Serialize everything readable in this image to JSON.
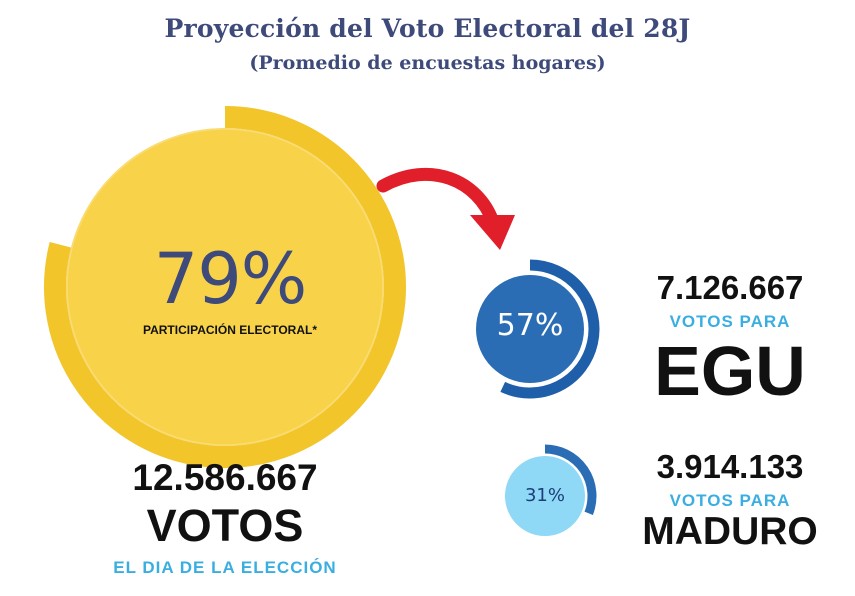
{
  "header": {
    "title": "Proyección del Voto Electoral del 28J",
    "subtitle": "(Promedio de encuestas hogares)"
  },
  "participation": {
    "percent_text": "79%",
    "percent_value": 79,
    "label": "PARTICIPACIÓN ELECTORAL*",
    "total_votes": "12.586.667",
    "votes_word": "VOTOS",
    "caption": "EL DIA DE LA ELECCIÓN"
  },
  "egu": {
    "percent_text": "57%",
    "percent_value": 57,
    "votes": "7.126.667",
    "votes_label": "VOTOS PARA",
    "name": "EGU"
  },
  "maduro": {
    "percent_text": "31%",
    "percent_value": 31,
    "votes": "3.914.133",
    "votes_label": "VOTOS PARA",
    "name": "MADURO"
  },
  "colors": {
    "yellow": "#f8d34a",
    "yellow_dark": "#f2c52b",
    "blue": "#2a6db5",
    "blue_dark": "#1f5ea8",
    "light_blue": "#8fd8f6",
    "arrow_red": "#e01f2a",
    "title_navy": "#3d4a7a",
    "caption_cyan": "#3aaee0"
  },
  "icons": [
    "curved-arrow-icon"
  ]
}
